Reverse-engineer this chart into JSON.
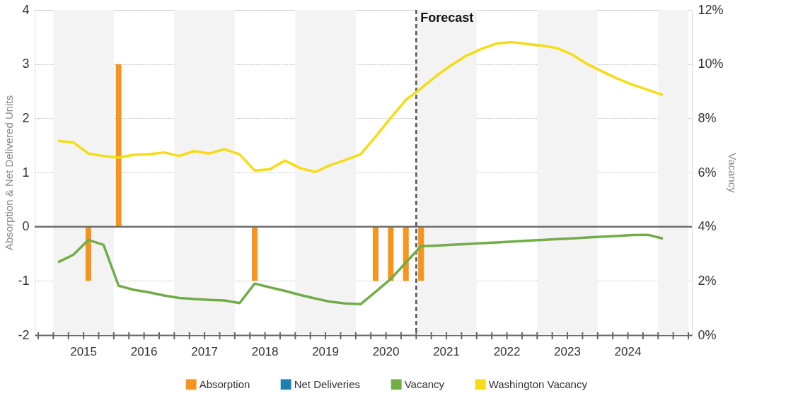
{
  "chart_data": {
    "type": "bar",
    "ylabel": "Absorption & Net Delivered Units",
    "y2label": "Vacancy",
    "x": [
      2015.08,
      2015.33,
      2015.58,
      2015.83,
      2016.08,
      2016.33,
      2016.58,
      2016.83,
      2017.08,
      2017.33,
      2017.58,
      2017.83,
      2018.08,
      2018.33,
      2018.58,
      2018.83,
      2019.08,
      2019.33,
      2019.58,
      2019.83,
      2020.08,
      2020.33,
      2020.58,
      2020.83,
      2021.08,
      2021.33,
      2021.58,
      2021.83,
      2022.08,
      2022.33,
      2022.58,
      2022.83,
      2023.08,
      2023.33,
      2023.58,
      2023.83,
      2024.08,
      2024.33,
      2024.58,
      2024.83,
      2025.08
    ],
    "series": [
      {
        "name": "Absorption",
        "color": "#f7941d",
        "x": [
          2015.58,
          2016.08,
          2018.33,
          2020.33,
          2020.58,
          2020.83,
          2021.08
        ],
        "values": [
          -1,
          3,
          -1,
          -1,
          -1,
          -1,
          -1
        ]
      },
      {
        "name": "Net Deliveries",
        "color": "#1f7fae",
        "values": [
          null,
          null,
          null,
          null,
          null,
          null,
          null,
          null,
          null,
          null,
          null,
          null,
          null,
          null,
          null,
          null,
          null,
          null,
          null,
          null,
          null,
          null,
          null,
          null,
          null,
          null,
          null,
          null,
          null,
          null,
          null,
          null,
          null,
          null,
          null,
          null,
          null,
          null,
          null,
          null,
          null
        ]
      },
      {
        "name": "Vacancy",
        "type": "line",
        "axis": "y2",
        "color": "#70ad47",
        "values": [
          2.69,
          2.96,
          3.51,
          3.33,
          1.82,
          1.67,
          1.58,
          1.46,
          1.37,
          1.33,
          1.3,
          1.28,
          1.18,
          1.9,
          1.76,
          1.63,
          1.48,
          1.35,
          1.23,
          1.17,
          1.14,
          1.6,
          2.07,
          2.68,
          3.28,
          3.3,
          3.33,
          3.36,
          3.39,
          3.42,
          3.45,
          3.48,
          3.51,
          3.54,
          3.57,
          3.6,
          3.63,
          3.66,
          3.69,
          3.7,
          3.56
        ]
      },
      {
        "name": "Washington Vacancy",
        "type": "line",
        "axis": "y2",
        "color": "#f5dc14",
        "values": [
          7.17,
          7.11,
          6.7,
          6.61,
          6.55,
          6.65,
          6.67,
          6.74,
          6.61,
          6.79,
          6.7,
          6.86,
          6.67,
          6.07,
          6.12,
          6.44,
          6.16,
          6.02,
          6.27,
          6.46,
          6.67,
          7.33,
          8.02,
          8.68,
          9.1,
          9.56,
          9.96,
          10.31,
          10.56,
          10.76,
          10.81,
          10.74,
          10.68,
          10.59,
          10.35,
          10.0,
          9.72,
          9.46,
          9.24,
          9.05,
          8.86
        ]
      }
    ],
    "xlim": [
      2014.75,
      2025.5
    ],
    "xticks": [
      {
        "value": 2014.75,
        "label": null
      },
      {
        "value": 2015,
        "label": null
      },
      {
        "value": 2015.25,
        "label": null
      },
      {
        "value": 2015.5,
        "label": "2015"
      },
      {
        "value": 2015.75,
        "label": null
      },
      {
        "value": 2016,
        "label": null
      },
      {
        "value": 2016.25,
        "label": null
      },
      {
        "value": 2016.5,
        "label": "2016"
      },
      {
        "value": 2016.75,
        "label": null
      },
      {
        "value": 2017,
        "label": null
      },
      {
        "value": 2017.25,
        "label": null
      },
      {
        "value": 2017.5,
        "label": "2017"
      },
      {
        "value": 2017.75,
        "label": null
      },
      {
        "value": 2018,
        "label": null
      },
      {
        "value": 2018.25,
        "label": null
      },
      {
        "value": 2018.5,
        "label": "2018"
      },
      {
        "value": 2018.75,
        "label": null
      },
      {
        "value": 2019,
        "label": null
      },
      {
        "value": 2019.25,
        "label": null
      },
      {
        "value": 2019.5,
        "label": "2019"
      },
      {
        "value": 2019.75,
        "label": null
      },
      {
        "value": 2020,
        "label": null
      },
      {
        "value": 2020.25,
        "label": null
      },
      {
        "value": 2020.5,
        "label": "2020"
      },
      {
        "value": 2020.75,
        "label": null
      },
      {
        "value": 2021,
        "label": null
      },
      {
        "value": 2021.25,
        "label": null
      },
      {
        "value": 2021.5,
        "label": "2021"
      },
      {
        "value": 2021.75,
        "label": null
      },
      {
        "value": 2022,
        "label": null
      },
      {
        "value": 2022.25,
        "label": null
      },
      {
        "value": 2022.5,
        "label": "2022"
      },
      {
        "value": 2022.75,
        "label": null
      },
      {
        "value": 2023,
        "label": null
      },
      {
        "value": 2023.25,
        "label": null
      },
      {
        "value": 2023.5,
        "label": "2023"
      },
      {
        "value": 2023.75,
        "label": null
      },
      {
        "value": 2024,
        "label": null
      },
      {
        "value": 2024.25,
        "label": null
      },
      {
        "value": 2024.5,
        "label": "2024"
      },
      {
        "value": 2024.75,
        "label": null
      },
      {
        "value": 2025,
        "label": null
      },
      {
        "value": 2025.25,
        "label": null
      },
      {
        "value": 2025.5,
        "label": null
      }
    ],
    "ylim": [
      -2,
      4
    ],
    "yticks": [
      -2,
      -1,
      0,
      1,
      2,
      3,
      4
    ],
    "y2lim": [
      0,
      12
    ],
    "y2ticks": [
      {
        "value": 0,
        "label": "0%"
      },
      {
        "value": 2,
        "label": "2%"
      },
      {
        "value": 4,
        "label": "4%"
      },
      {
        "value": 6,
        "label": "6%"
      },
      {
        "value": 8,
        "label": "8%"
      },
      {
        "value": 10,
        "label": "10%"
      },
      {
        "value": 12,
        "label": "12%"
      }
    ],
    "ref_lines": [
      {
        "axis": "y",
        "value": 0,
        "label": null,
        "color": "#6e6e6e",
        "line_style": "solid"
      },
      {
        "axis": "x",
        "value": 2021,
        "label": "Forecast",
        "color": "#555555",
        "line_style": "dashed"
      }
    ],
    "bands": [
      {
        "axis": "x",
        "from": 2015,
        "to": 2016,
        "label": null,
        "color": "#f3f3f3"
      },
      {
        "axis": "x",
        "from": 2017,
        "to": 2018,
        "label": null,
        "color": "#f3f3f3"
      },
      {
        "axis": "x",
        "from": 2019,
        "to": 2020,
        "label": null,
        "color": "#f3f3f3"
      },
      {
        "axis": "x",
        "from": 2021,
        "to": 2022,
        "label": null,
        "color": "#f3f3f3"
      },
      {
        "axis": "x",
        "from": 2023,
        "to": 2024,
        "label": null,
        "color": "#f3f3f3"
      },
      {
        "axis": "x",
        "from": 2025,
        "to": 2025.5,
        "label": null,
        "color": "#f3f3f3"
      }
    ],
    "grid": "y",
    "legend": "bottom",
    "marker": "none"
  }
}
